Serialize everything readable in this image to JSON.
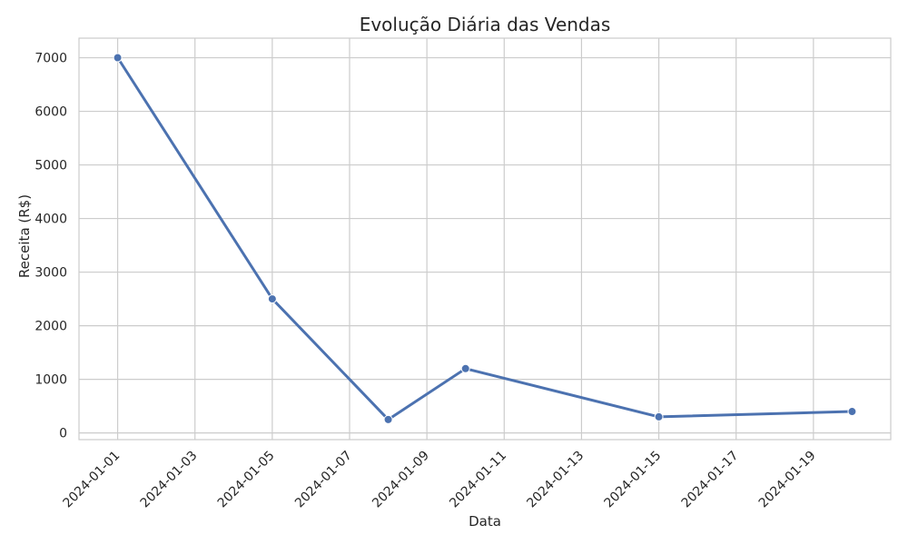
{
  "chart_data": {
    "type": "line",
    "title": "Evolução Diária das Vendas",
    "xlabel": "Data",
    "ylabel": "Receita (R$)",
    "x": [
      "2024-01-01",
      "2024-01-05",
      "2024-01-08",
      "2024-01-10",
      "2024-01-15",
      "2024-01-20"
    ],
    "series": [
      {
        "values": [
          7000,
          2500,
          250,
          1200,
          300,
          400
        ]
      }
    ],
    "x_ticks": [
      "2024-01-01",
      "2024-01-03",
      "2024-01-05",
      "2024-01-07",
      "2024-01-09",
      "2024-01-11",
      "2024-01-13",
      "2024-01-15",
      "2024-01-17",
      "2024-01-19"
    ],
    "y_ticks": [
      0,
      1000,
      2000,
      3000,
      4000,
      5000,
      6000,
      7000
    ],
    "xlim": [
      "2023-12-31",
      "2024-01-21"
    ],
    "ylim": [
      -125,
      7365
    ],
    "grid": true,
    "color": "#4c72b0"
  }
}
